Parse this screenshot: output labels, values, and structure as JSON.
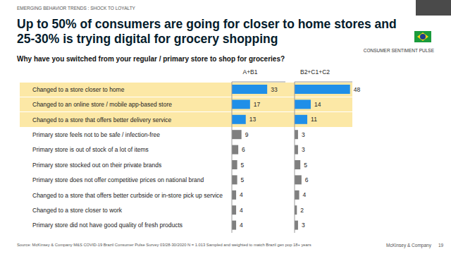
{
  "header": "EMERGING BEHAVIOR TRENDS : SHOCK TO LOYALTY",
  "title": "Up to 50% of consumers are going for closer to home stores and 25-30% is trying digital for grocery shopping",
  "tag": "CONSUMER SENTIMENT PULSE",
  "question": "Why have you switched from your regular / primary store to shop for groceries?",
  "source": "Source: McKinsey & Company M&S COVID-19 Brazil Consumer Pulse Survey 03/28-30/2020 N = 1.013 Sampled and weighted to match Brazil gen pop 18+ years",
  "brand": "McKinsey & Company",
  "page": 19,
  "chart_data": [
    {
      "type": "bar",
      "orientation": "horizontal",
      "title": "A+B1",
      "categories": [
        "Changed to a store closer to home",
        "Changed to an online store / mobile app-based store",
        "Changed to a store that offers better delivery service",
        "Primary store feels not to be safe / infection-free",
        "Primary store is out of stock of a lot of items",
        "Primary store stocked out on their private brands",
        "Primary store does not offer competitive prices on national brand",
        "Changed to a store that offers better curbside or in-store pick up service",
        "Changed to a store closer to work",
        "Primary store did not have good quality of fresh products"
      ],
      "values": [
        33,
        17,
        13,
        9,
        6,
        5,
        5,
        4,
        4,
        4
      ],
      "colors": [
        "#1f8fe8",
        "#1f8fe8",
        "#1f8fe8",
        "#7f7f7f",
        "#7f7f7f",
        "#7f7f7f",
        "#7f7f7f",
        "#7f7f7f",
        "#7f7f7f",
        "#7f7f7f"
      ],
      "xlim": [
        0,
        50
      ],
      "data_labels": true,
      "tick_labels": "y"
    },
    {
      "type": "bar",
      "orientation": "horizontal",
      "title": "B2+C1+C2",
      "categories": [
        "Changed to a store closer to home",
        "Changed to an online store / mobile app-based store",
        "Changed to a store that offers better delivery service",
        "Primary store feels not to be safe / infection-free",
        "Primary store is out of stock of a lot of items",
        "Primary store stocked out on their private brands",
        "Primary store does not offer competitive prices on national brand",
        "Changed to a store that offers better curbside or in-store pick up service",
        "Changed to a store closer to work",
        "Primary store did not have good quality of fresh products"
      ],
      "values": [
        48,
        14,
        11,
        3,
        3,
        5,
        6,
        4,
        2,
        3
      ],
      "colors": [
        "#1f8fe8",
        "#1f8fe8",
        "#1f8fe8",
        "#7f7f7f",
        "#7f7f7f",
        "#7f7f7f",
        "#7f7f7f",
        "#7f7f7f",
        "#7f7f7f",
        "#7f7f7f"
      ],
      "xlim": [
        0,
        50
      ],
      "data_labels": true,
      "tick_labels": false
    }
  ]
}
